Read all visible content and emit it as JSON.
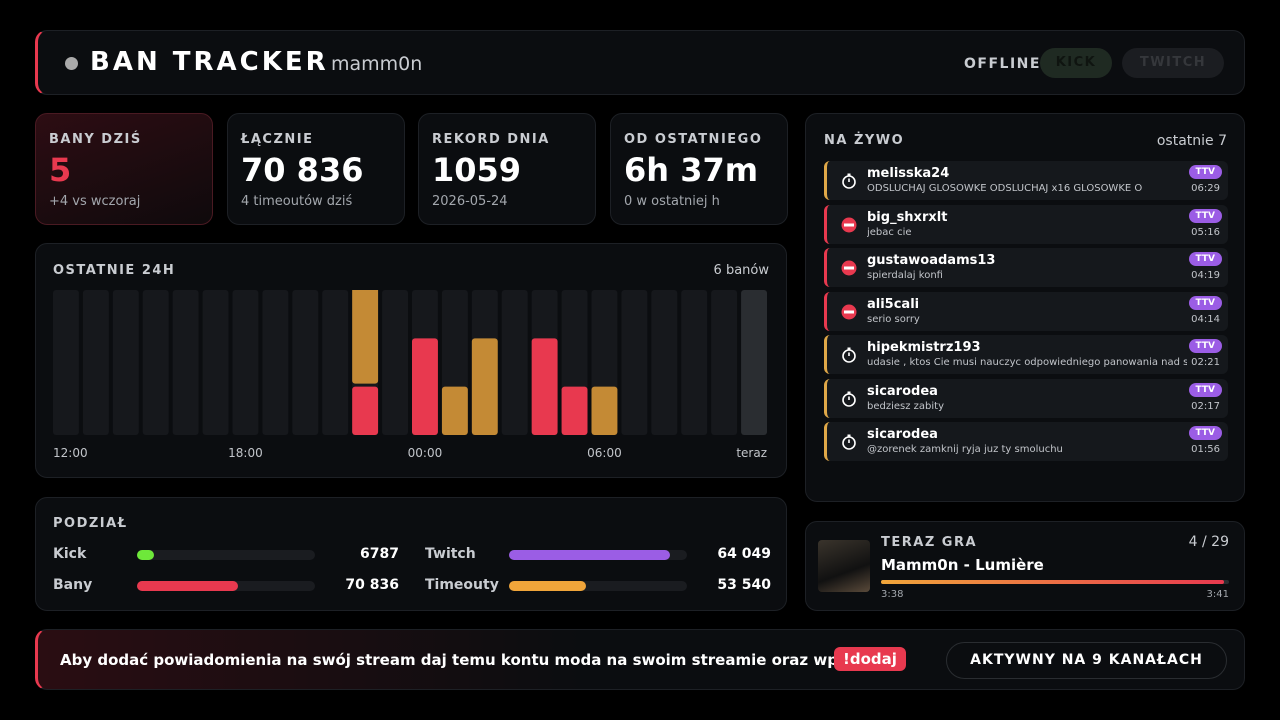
{
  "header": {
    "title": "BAN TRACKER",
    "channel": "mamm0n",
    "status": "OFFLINE",
    "buttons": [
      "KICK",
      "TWITCH"
    ]
  },
  "stats": [
    {
      "label": "BANY DZIŚ",
      "value": "5",
      "note": "+4 vs wczoraj"
    },
    {
      "label": "ŁĄCZNIE",
      "value": "70 836",
      "note": "4 timeoutów dziś"
    },
    {
      "label": "REKORD DNIA",
      "value": "1059",
      "note": "2026-05-24"
    },
    {
      "label": "OD OSTATNIEGO",
      "value": "6h 37m",
      "note": "0 w ostatniej h"
    }
  ],
  "chart_data": {
    "type": "bar",
    "stacked": true,
    "title": "OSTATNIE 24H",
    "subtitle": "6 banów",
    "categories": [
      "12:00",
      null,
      null,
      null,
      null,
      null,
      "18:00",
      null,
      null,
      null,
      null,
      null,
      "00:00",
      null,
      null,
      null,
      null,
      null,
      "06:00",
      null,
      null,
      null,
      null,
      "teraz"
    ],
    "series": [
      {
        "color": "#e8394f",
        "values": [
          0,
          0,
          0,
          0,
          0,
          0,
          0,
          0,
          0,
          0,
          1,
          0,
          2,
          0,
          0,
          0,
          2,
          1,
          0,
          0,
          0,
          0,
          0,
          0
        ]
      },
      {
        "color": "#c48a35",
        "values": [
          0,
          0,
          0,
          0,
          0,
          0,
          0,
          0,
          0,
          0,
          2,
          0,
          0,
          1,
          2,
          0,
          0,
          0,
          1,
          0,
          0,
          0,
          0,
          0
        ]
      }
    ],
    "ylim": [
      0,
      3
    ]
  },
  "breakdown": {
    "title": "PODZIAŁ",
    "pairs": [
      [
        {
          "name": "Kick",
          "value": 6787,
          "value_label": "6787",
          "color": "#6ee83a"
        },
        {
          "name": "Twitch",
          "value": 64049,
          "value_label": "64 049",
          "color": "#9b5de5"
        }
      ],
      [
        {
          "name": "Bany",
          "value": 70836,
          "value_label": "70 836",
          "color": "#e8394f"
        },
        {
          "name": "Timeouty",
          "value": 53540,
          "value_label": "53 540",
          "color": "#f0a53a"
        }
      ]
    ]
  },
  "live": {
    "title": "NA ŻYWO",
    "subtitle": "ostatnie 7",
    "entries": [
      {
        "kind": "timeout",
        "user": "melisska24",
        "message": "ODSLUCHAJ GLOSOWKE ODSLUCHAJ x16 GLOSOWKE O",
        "badge": "TTV",
        "time": "06:29"
      },
      {
        "kind": "ban",
        "user": "big_shxrxlt",
        "message": "jebac cie",
        "badge": "TTV",
        "time": "05:16"
      },
      {
        "kind": "ban",
        "user": "gustawoadams13",
        "message": "spierdalaj konfi",
        "badge": "TTV",
        "time": "04:19"
      },
      {
        "kind": "ban",
        "user": "ali5cali",
        "message": "serio sorry",
        "badge": "TTV",
        "time": "04:14"
      },
      {
        "kind": "timeout",
        "user": "hipekmistrz193",
        "message": "udasie , ktos Cie musi nauczyc odpowiedniego panowania nad sl",
        "badge": "TTV",
        "time": "02:21"
      },
      {
        "kind": "timeout",
        "user": "sicarodea",
        "message": "bedziesz zabity",
        "badge": "TTV",
        "time": "02:17"
      },
      {
        "kind": "timeout",
        "user": "sicarodea",
        "message": "@zorenek zamknij ryja juz ty smoluchu",
        "badge": "TTV",
        "time": "01:56"
      }
    ]
  },
  "now_playing": {
    "title": "TERAZ GRA",
    "position": "4 / 29",
    "track": "Mamm0n - Lumière",
    "elapsed": "3:38",
    "duration": "3:41"
  },
  "footer": {
    "text": "Aby dodać powiadomienia na swój stream daj temu kontu moda na swoim streamie oraz wpisz tu",
    "command": "!dodaj",
    "status": "AKTYWNY NA 9 KANAŁACH"
  }
}
